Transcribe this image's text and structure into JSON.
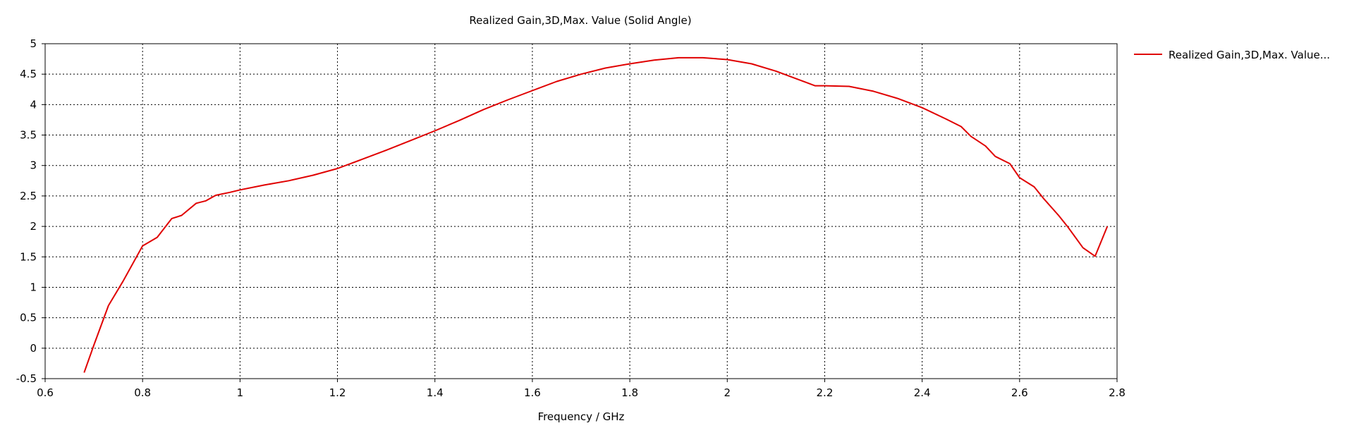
{
  "chart_data": {
    "type": "line",
    "title": "Realized Gain,3D,Max. Value (Solid Angle)",
    "xlabel": "Frequency / GHz",
    "ylabel": "",
    "xlim": [
      0.6,
      2.8
    ],
    "ylim": [
      -0.5,
      5
    ],
    "x_ticks": [
      "0.6",
      "0.8",
      "1",
      "1.2",
      "1.4",
      "1.6",
      "1.8",
      "2",
      "2.2",
      "2.4",
      "2.6",
      "2.8"
    ],
    "y_ticks": [
      "-0.5",
      "0",
      "0.5",
      "1",
      "1.5",
      "2",
      "2.5",
      "3",
      "3.5",
      "4",
      "4.5",
      "5"
    ],
    "grid": true,
    "grid_style": "dotted",
    "legend_position": "right",
    "series": [
      {
        "name": "Realized Gain,3D,Max. Value...",
        "color": "#e00000",
        "x": [
          0.68,
          0.7,
          0.73,
          0.76,
          0.8,
          0.83,
          0.86,
          0.88,
          0.91,
          0.93,
          0.95,
          0.98,
          1.0,
          1.05,
          1.1,
          1.15,
          1.2,
          1.25,
          1.3,
          1.35,
          1.4,
          1.45,
          1.5,
          1.55,
          1.6,
          1.65,
          1.7,
          1.75,
          1.8,
          1.85,
          1.9,
          1.95,
          2.0,
          2.05,
          2.1,
          2.15,
          2.18,
          2.2,
          2.25,
          2.3,
          2.35,
          2.4,
          2.45,
          2.48,
          2.5,
          2.53,
          2.55,
          2.58,
          2.6,
          2.63,
          2.65,
          2.68,
          2.7,
          2.73,
          2.755,
          2.78
        ],
        "y": [
          -0.4,
          0.05,
          0.7,
          1.1,
          1.68,
          1.82,
          2.13,
          2.18,
          2.38,
          2.42,
          2.51,
          2.56,
          2.6,
          2.68,
          2.75,
          2.84,
          2.95,
          3.1,
          3.25,
          3.41,
          3.57,
          3.74,
          3.92,
          4.08,
          4.23,
          4.38,
          4.5,
          4.6,
          4.67,
          4.73,
          4.77,
          4.77,
          4.74,
          4.67,
          4.55,
          4.4,
          4.31,
          4.31,
          4.3,
          4.22,
          4.1,
          3.95,
          3.76,
          3.64,
          3.48,
          3.32,
          3.15,
          3.03,
          2.8,
          2.65,
          2.45,
          2.18,
          1.98,
          1.65,
          1.51,
          2.0
        ]
      }
    ]
  }
}
